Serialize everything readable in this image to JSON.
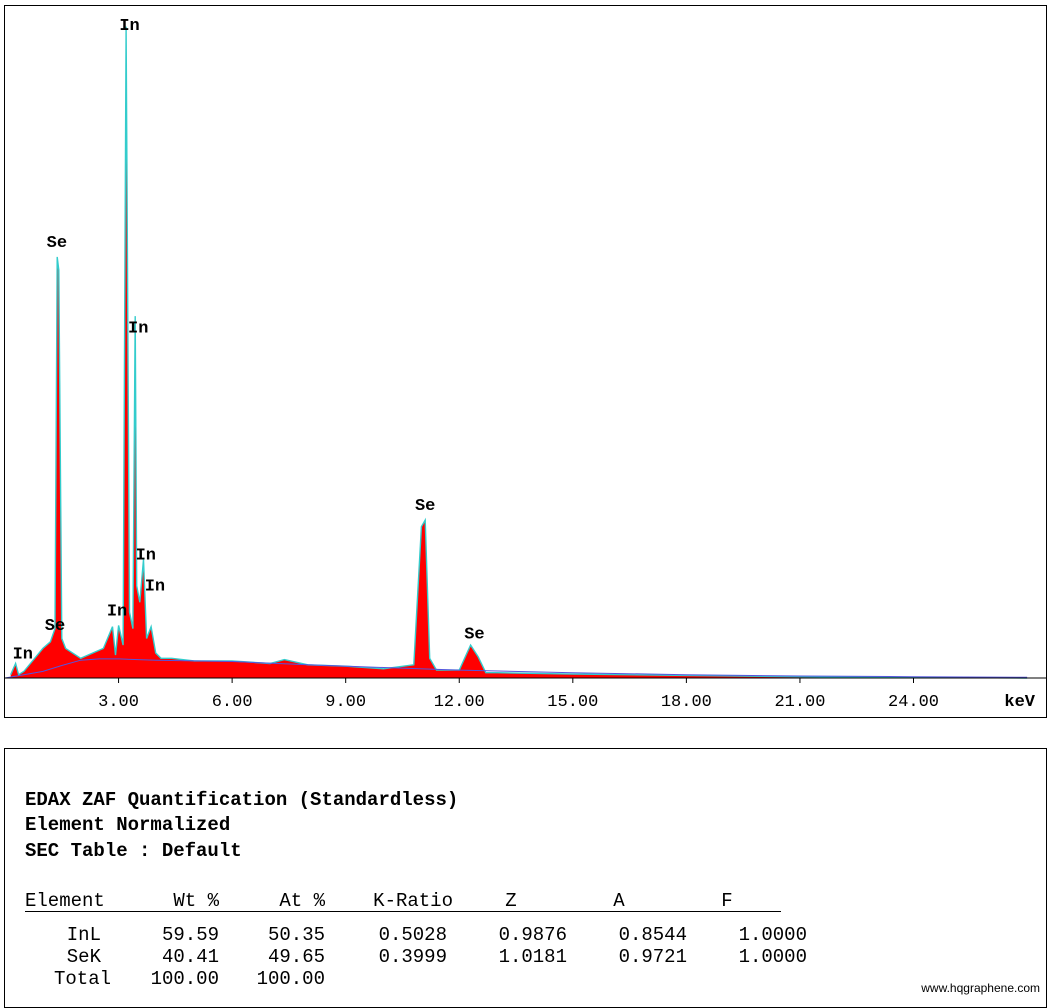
{
  "chart_data": {
    "type": "line",
    "xlabel": "keV",
    "xlim": [
      0,
      27.5
    ],
    "ylim": [
      0,
      1
    ],
    "x_ticks": [
      "3.00",
      "6.00",
      "9.00",
      "12.00",
      "15.00",
      "18.00",
      "21.00",
      "24.00"
    ],
    "x_tick_values": [
      3,
      6,
      9,
      12,
      15,
      18,
      21,
      24
    ],
    "series": [
      {
        "x": [
          0.15,
          0.28,
          0.36,
          0.5,
          1.0,
          1.2,
          1.32,
          1.38,
          1.42,
          1.5,
          1.6,
          2.0,
          2.6,
          2.84,
          2.92,
          3.0,
          3.12,
          3.2,
          3.29,
          3.38,
          3.44,
          3.48,
          3.56,
          3.66,
          3.74,
          3.86,
          3.98,
          4.12,
          4.4,
          5.0,
          6.0,
          7.0,
          7.38,
          8.0,
          9.0,
          10.0,
          10.8,
          11.0,
          11.1,
          11.22,
          11.4,
          12.0,
          12.3,
          12.5,
          12.7,
          13.0,
          15.0,
          18.0,
          21.0,
          24.0,
          27.0
        ],
        "y": [
          0.005,
          0.022,
          0.005,
          0.01,
          0.045,
          0.055,
          0.075,
          0.64,
          0.62,
          0.06,
          0.045,
          0.03,
          0.045,
          0.078,
          0.035,
          0.08,
          0.05,
          0.99,
          0.1,
          0.075,
          0.55,
          0.14,
          0.115,
          0.18,
          0.06,
          0.078,
          0.038,
          0.03,
          0.03,
          0.026,
          0.026,
          0.022,
          0.028,
          0.02,
          0.018,
          0.014,
          0.02,
          0.23,
          0.24,
          0.03,
          0.012,
          0.012,
          0.05,
          0.032,
          0.008,
          0.008,
          0.006,
          0.004,
          0.002,
          0.001,
          0.0
        ],
        "background": {
          "x": [
            0.0,
            0.5,
            1.0,
            1.5,
            2.0,
            2.5,
            3.0,
            4.0,
            5.0,
            6.0,
            8.0,
            10.0,
            12.0,
            15.0,
            18.0,
            21.0,
            24.0,
            27.0
          ],
          "y": [
            0.0,
            0.005,
            0.01,
            0.019,
            0.027,
            0.029,
            0.029,
            0.027,
            0.026,
            0.025,
            0.02,
            0.016,
            0.012,
            0.008,
            0.005,
            0.003,
            0.002,
            0.001
          ]
        }
      }
    ],
    "peak_labels": [
      {
        "label": "In",
        "x": 3.29,
        "y": 0.985
      },
      {
        "label": "Se",
        "x": 1.37,
        "y": 0.655
      },
      {
        "label": "In",
        "x": 3.52,
        "y": 0.525
      },
      {
        "label": "Se",
        "x": 11.1,
        "y": 0.255
      },
      {
        "label": "In",
        "x": 3.72,
        "y": 0.18
      },
      {
        "label": "In",
        "x": 3.96,
        "y": 0.133
      },
      {
        "label": "In",
        "x": 2.96,
        "y": 0.095
      },
      {
        "label": "Se",
        "x": 1.32,
        "y": 0.073
      },
      {
        "label": "Se",
        "x": 12.4,
        "y": 0.06
      },
      {
        "label": "In",
        "x": 0.47,
        "y": 0.03
      }
    ]
  },
  "quant": {
    "title_lines": [
      "EDAX ZAF Quantification (Standardless)",
      "Element Normalized",
      "SEC Table : Default"
    ],
    "headers": [
      "Element",
      "Wt %",
      "At %",
      "K-Ratio",
      "Z",
      "A",
      "F"
    ],
    "rows": [
      [
        "InL",
        "59.59",
        "50.35",
        "0.5028",
        "0.9876",
        "0.8544",
        "1.0000"
      ],
      [
        "SeK",
        "40.41",
        "49.65",
        "0.3999",
        "1.0181",
        "0.9721",
        "1.0000"
      ],
      [
        "Total",
        "100.00",
        "100.00",
        "",
        "",
        "",
        ""
      ]
    ]
  },
  "watermark": "www.hqgraphene.com",
  "colors": {
    "fill": "#ff0000",
    "outline": "#33cccc",
    "background_line": "#5555dd",
    "axis": "#000000"
  }
}
